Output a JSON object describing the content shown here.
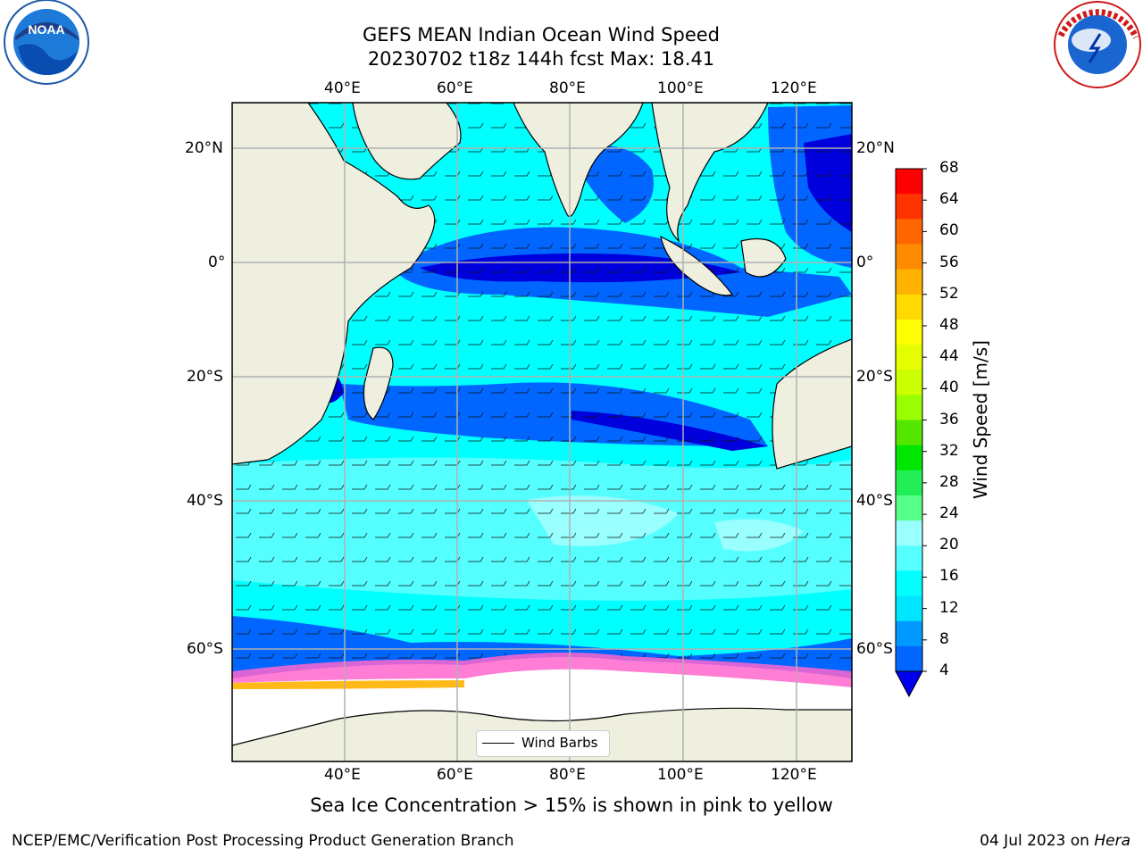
{
  "header": {
    "title_line1": "GEFS MEAN Indian Ocean Wind Speed",
    "title_line2": "20230702 t18z 144h fcst   Max: 18.41"
  },
  "logos": {
    "left": {
      "text": "NOAA",
      "ring_text": "NATIONAL OCEANIC AND ATMOSPHERIC ADMINISTRATION · U.S. DEPARTMENT OF COMMERCE",
      "icon": "noaa-logo"
    },
    "right": {
      "ring_text": "NATIONAL WEATHER SERVICE",
      "icon": "nws-logo"
    }
  },
  "map": {
    "lon_range": [
      20,
      130
    ],
    "lat_range": [
      -70,
      27
    ],
    "lon_ticks_top": [
      "40°E",
      "60°E",
      "80°E",
      "100°E",
      "120°E"
    ],
    "lon_ticks_bottom": [
      "40°E",
      "60°E",
      "80°E",
      "100°E",
      "120°E"
    ],
    "lat_ticks_left": [
      "20°N",
      "0°",
      "20°S",
      "40°S",
      "60°S"
    ],
    "lat_ticks_right": [
      "20°N",
      "0°",
      "20°S",
      "40°S",
      "60°S"
    ],
    "grid": true,
    "colors": {
      "land": "#efefdf",
      "ice": "#ffffff",
      "grid": "#b0b0b0"
    }
  },
  "legend": {
    "label": "Wind Barbs"
  },
  "colorbar": {
    "label": "Wind Speed [m/s]",
    "ticks": [
      "68",
      "64",
      "60",
      "56",
      "52",
      "48",
      "44",
      "40",
      "36",
      "32",
      "28",
      "24",
      "20",
      "16",
      "12",
      "8",
      "4"
    ],
    "colors": [
      "#ff0000",
      "#ff3300",
      "#ff6600",
      "#ff8c00",
      "#ffb300",
      "#ffd900",
      "#ffff00",
      "#e6ff00",
      "#ccff00",
      "#99ff00",
      "#55e600",
      "#00e600",
      "#22ee55",
      "#55ff88",
      "#99ffff",
      "#55ffff",
      "#00ffff",
      "#00e6ff",
      "#0099ff",
      "#0066ff"
    ],
    "extend_color": "#0000ee"
  },
  "subtitle": "Sea Ice Concentration > 15% is shown in pink to yellow",
  "footer": {
    "left": "NCEP/EMC/Verification Post Processing Product Generation Branch",
    "right_date": "04 Jul 2023 on ",
    "right_host": "Hera"
  }
}
